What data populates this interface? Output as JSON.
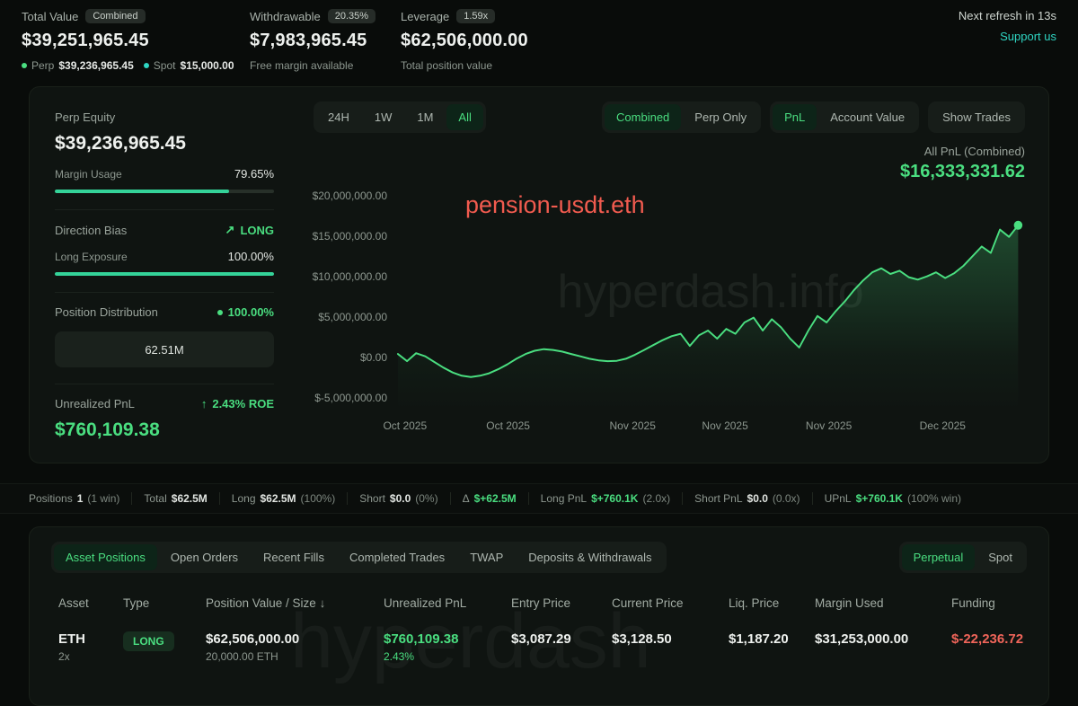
{
  "colors": {
    "green": "#4ade80",
    "teal": "#2fd6c3",
    "red": "#f0655a",
    "coral": "#f15b4f"
  },
  "header": {
    "total_value": {
      "label": "Total Value",
      "badge": "Combined",
      "value": "$39,251,965.45",
      "perp_label": "Perp",
      "perp_value": "$39,236,965.45",
      "spot_label": "Spot",
      "spot_value": "$15,000.00"
    },
    "withdrawable": {
      "label": "Withdrawable",
      "badge": "20.35%",
      "value": "$7,983,965.45",
      "sub": "Free margin available"
    },
    "leverage": {
      "label": "Leverage",
      "badge": "1.59x",
      "value": "$62,506,000.00",
      "sub": "Total position value"
    },
    "refresh": "Next refresh in 13s",
    "support": "Support us"
  },
  "sidebar": {
    "perp_equity_label": "Perp Equity",
    "perp_equity_value": "$39,236,965.45",
    "margin_usage_label": "Margin Usage",
    "margin_usage_value": "79.65%",
    "margin_usage_pct": 79.65,
    "direction_bias_label": "Direction Bias",
    "direction_bias_value": "LONG",
    "long_exposure_label": "Long Exposure",
    "long_exposure_value": "100.00%",
    "long_exposure_pct": 100,
    "position_distribution_label": "Position Distribution",
    "position_distribution_value": "100.00%",
    "distribution_box": "62.51M",
    "unrealized_pnl_label": "Unrealized PnL",
    "unrealized_pnl_roe": "2.43% ROE",
    "unrealized_pnl_value": "$760,109.38"
  },
  "chart_controls": {
    "ranges": [
      "24H",
      "1W",
      "1M",
      "All"
    ],
    "active_range": "All",
    "mode_group": [
      "Combined",
      "Perp Only"
    ],
    "active_mode": "Combined",
    "metric_group": [
      "PnL",
      "Account Value"
    ],
    "active_metric": "PnL",
    "show_trades": "Show Trades",
    "pnl_label": "All PnL (Combined)",
    "pnl_value": "$16,333,331.62"
  },
  "chart_data": {
    "type": "area",
    "title": "All PnL (Combined)",
    "overlay_label": "pension-usdt.eth",
    "watermark": "hyperdash.info",
    "unit": "USD (millions)",
    "ylim": [
      -5000000,
      20000000
    ],
    "y_ticks": [
      "$20,000,000.00",
      "$15,000,000.00",
      "$10,000,000.00",
      "$5,000,000.00",
      "$0.00",
      "$-5,000,000.00"
    ],
    "y_values": [
      20,
      15,
      10,
      5,
      0,
      -5
    ],
    "x_ticks": [
      "Oct 2025",
      "Oct 2025",
      "Nov 2025",
      "Nov 2025",
      "Nov 2025",
      "Dec 2025"
    ],
    "x_tick_pos": [
      0.014,
      0.178,
      0.376,
      0.523,
      0.688,
      0.869
    ],
    "series": [
      {
        "name": "All PnL (Combined)",
        "final_value": 16333331.62,
        "values_musd": [
          0.4,
          -0.5,
          0.5,
          0.1,
          -0.6,
          -1.3,
          -1.9,
          -2.3,
          -2.45,
          -2.3,
          -2.0,
          -1.5,
          -0.9,
          -0.2,
          0.4,
          0.8,
          1.0,
          0.9,
          0.7,
          0.4,
          0.1,
          -0.2,
          -0.4,
          -0.5,
          -0.45,
          -0.2,
          0.3,
          0.9,
          1.5,
          2.1,
          2.6,
          2.9,
          1.4,
          2.7,
          3.3,
          2.3,
          3.5,
          2.9,
          4.3,
          4.9,
          3.3,
          4.7,
          3.7,
          2.3,
          1.2,
          3.3,
          5.1,
          4.3,
          5.7,
          6.9,
          8.3,
          9.5,
          10.5,
          11.0,
          10.3,
          10.7,
          9.9,
          9.6,
          10.0,
          10.5,
          9.8,
          10.4,
          11.3,
          12.5,
          13.7,
          12.9,
          15.8,
          14.9,
          16.33
        ]
      }
    ]
  },
  "summary": {
    "items": [
      {
        "label": "Positions",
        "value": "1",
        "extra": "(1 win)",
        "green": false
      },
      {
        "label": "Total",
        "value": "$62.5M",
        "extra": "",
        "green": false
      },
      {
        "label": "Long",
        "value": "$62.5M",
        "extra": "(100%)",
        "green": false
      },
      {
        "label": "Short",
        "value": "$0.0",
        "extra": "(0%)",
        "green": false
      },
      {
        "label": "Δ",
        "value": "$+62.5M",
        "extra": "",
        "green": true
      },
      {
        "label": "Long PnL",
        "value": "$+760.1K",
        "extra": "(2.0x)",
        "green": true
      },
      {
        "label": "Short PnL",
        "value": "$0.0",
        "extra": "(0.0x)",
        "green": false
      },
      {
        "label": "UPnL",
        "value": "$+760.1K",
        "extra": "(100% win)",
        "green": true
      }
    ]
  },
  "bottom": {
    "tabs": [
      "Asset Positions",
      "Open Orders",
      "Recent Fills",
      "Completed Trades",
      "TWAP",
      "Deposits & Withdrawals"
    ],
    "active_tab": "Asset Positions",
    "market_tabs": [
      "Perpetual",
      "Spot"
    ],
    "active_market": "Perpetual",
    "watermark": "hyperdash",
    "table": {
      "headers": [
        "Asset",
        "Type",
        "Position Value / Size",
        "Unrealized PnL",
        "Entry Price",
        "Current Price",
        "Liq. Price",
        "Margin Used",
        "Funding"
      ],
      "sort_column": 2,
      "sort_icon": "↓",
      "rows": [
        {
          "asset": "ETH",
          "leverage": "2x",
          "type": "LONG",
          "position_value": "$62,506,000.00",
          "position_size": "20,000.00 ETH",
          "unrealized_pnl": "$760,109.38",
          "unrealized_pnl_pct": "2.43%",
          "entry_price": "$3,087.29",
          "current_price": "$3,128.50",
          "liq_price": "$1,187.20",
          "margin_used": "$31,253,000.00",
          "funding": "$-22,236.72"
        }
      ]
    }
  }
}
